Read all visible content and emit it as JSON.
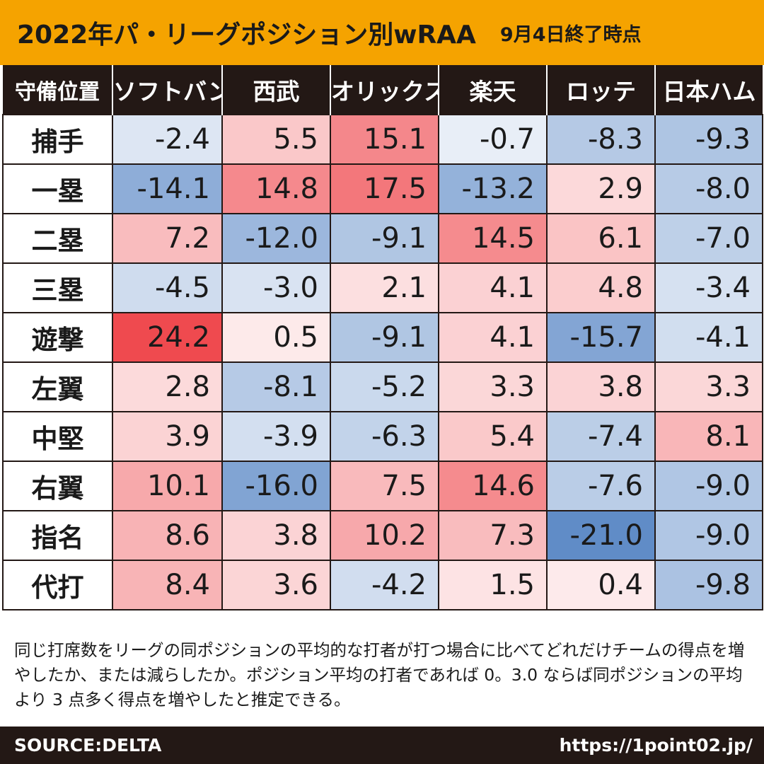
{
  "title": "2022年パ・リーグポジション別wRAA",
  "date": "9月4日終了時点",
  "chart_data": {
    "type": "table",
    "title": "2022年パ・リーグポジション別wRAA",
    "corner_header": "守備位置",
    "columns": [
      "ソフトバンク",
      "西武",
      "オリックス",
      "楽天",
      "ロッテ",
      "日本ハム"
    ],
    "rows": [
      {
        "position": "捕手",
        "values": [
          "-2.4",
          "5.5",
          "15.1",
          "-0.7",
          "-8.3",
          "-9.3"
        ]
      },
      {
        "position": "一塁",
        "values": [
          "-14.1",
          "14.8",
          "17.5",
          "-13.2",
          "2.9",
          "-8.0"
        ]
      },
      {
        "position": "二塁",
        "values": [
          "7.2",
          "-12.0",
          "-9.1",
          "14.5",
          "6.1",
          "-7.0"
        ]
      },
      {
        "position": "三塁",
        "values": [
          "-4.5",
          "-3.0",
          "2.1",
          "4.1",
          "4.8",
          "-3.4"
        ]
      },
      {
        "position": "遊撃",
        "values": [
          "24.2",
          "0.5",
          "-9.1",
          "4.1",
          "-15.7",
          "-4.1"
        ]
      },
      {
        "position": "左翼",
        "values": [
          "2.8",
          "-8.1",
          "-5.2",
          "3.3",
          "3.8",
          "3.3"
        ]
      },
      {
        "position": "中堅",
        "values": [
          "3.9",
          "-3.9",
          "-6.3",
          "5.4",
          "-7.4",
          "8.1"
        ]
      },
      {
        "position": "右翼",
        "values": [
          "10.1",
          "-16.0",
          "7.5",
          "14.6",
          "-7.6",
          "-9.0"
        ]
      },
      {
        "position": "指名",
        "values": [
          "8.6",
          "3.8",
          "10.2",
          "7.3",
          "-21.0",
          "-9.0"
        ]
      },
      {
        "position": "代打",
        "values": [
          "8.4",
          "3.6",
          "-4.2",
          "1.5",
          "0.4",
          "-9.8"
        ]
      }
    ],
    "color_scale": {
      "positive": "#ef4a4f",
      "negative": "#4a7cc0",
      "neutral": "#ffffff",
      "max_abs": 24.2
    }
  },
  "note": "同じ打席数をリーグの同ポジションの平均的な打者が打つ場合に比べてどれだけチームの得点を増やしたか、または減らしたか。ポジション平均の打者であれば 0。3.0 ならば同ポジションの平均より 3 点多く得点を増やしたと推定できる。",
  "footer": {
    "source": "SOURCE:DELTA",
    "url": "https://1point02.jp/"
  },
  "colors": {
    "title_bg": "#f5a300",
    "header_bg": "#231815"
  }
}
